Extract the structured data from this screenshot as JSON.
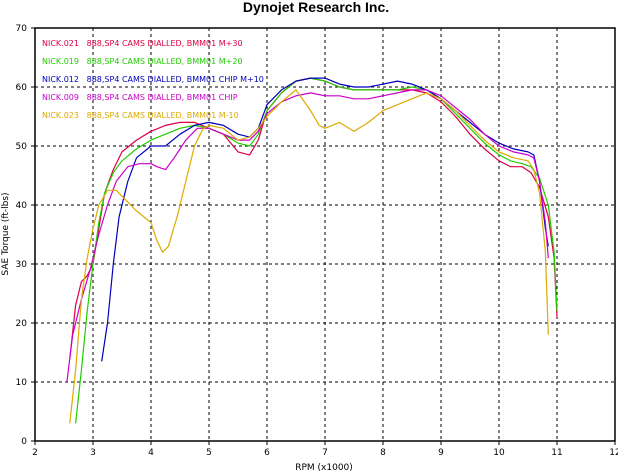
{
  "chart_data": {
    "type": "line",
    "title": "Dynojet  Research  Inc.",
    "xlabel": "RPM (x1000)",
    "ylabel": "SAE Torque (ft-lbs)",
    "xlim": [
      2,
      12
    ],
    "ylim": [
      0,
      70
    ],
    "xticks": [
      2,
      3,
      4,
      5,
      6,
      7,
      8,
      9,
      10,
      11,
      12
    ],
    "yticks": [
      0,
      10,
      20,
      30,
      40,
      50,
      60,
      70
    ],
    "grid": true,
    "legend_position": "top-left",
    "series": [
      {
        "name": "NICK.021   888,SP4 CAMS DIALLED, BMM01 M+30",
        "color": "#dd0044",
        "points": [
          [
            2.6,
            14
          ],
          [
            2.7,
            23
          ],
          [
            2.8,
            27
          ],
          [
            2.9,
            28
          ],
          [
            3.0,
            30
          ],
          [
            3.1,
            36
          ],
          [
            3.2,
            42
          ],
          [
            3.35,
            46
          ],
          [
            3.5,
            49
          ],
          [
            3.75,
            51
          ],
          [
            4.0,
            52.5
          ],
          [
            4.25,
            53.5
          ],
          [
            4.5,
            54
          ],
          [
            4.75,
            54
          ],
          [
            5.0,
            53
          ],
          [
            5.25,
            52
          ],
          [
            5.5,
            49
          ],
          [
            5.7,
            48.5
          ],
          [
            5.85,
            51
          ],
          [
            6.0,
            56
          ],
          [
            6.25,
            59
          ],
          [
            6.5,
            61
          ],
          [
            6.75,
            61.5
          ],
          [
            7.0,
            61
          ],
          [
            7.25,
            60
          ],
          [
            7.5,
            59.5
          ],
          [
            7.75,
            59.5
          ],
          [
            8.0,
            59.5
          ],
          [
            8.25,
            59.5
          ],
          [
            8.5,
            59.5
          ],
          [
            8.75,
            59
          ],
          [
            9.0,
            57.5
          ],
          [
            9.25,
            55
          ],
          [
            9.5,
            52
          ],
          [
            9.75,
            49.5
          ],
          [
            10.0,
            47.5
          ],
          [
            10.2,
            46.5
          ],
          [
            10.4,
            46.5
          ],
          [
            10.55,
            45.5
          ],
          [
            10.7,
            43
          ],
          [
            10.85,
            38
          ],
          [
            10.95,
            31
          ],
          [
            11.0,
            21
          ]
        ]
      },
      {
        "name": "NICK.019   888,SP4 CAMS DIALLED, BMM01 M+20",
        "color": "#22cc00",
        "points": [
          [
            2.7,
            3
          ],
          [
            2.8,
            12
          ],
          [
            2.9,
            22
          ],
          [
            3.0,
            30
          ],
          [
            3.1,
            37
          ],
          [
            3.2,
            42
          ],
          [
            3.35,
            45.5
          ],
          [
            3.5,
            47.5
          ],
          [
            3.75,
            49.5
          ],
          [
            4.0,
            51
          ],
          [
            4.25,
            52
          ],
          [
            4.5,
            53
          ],
          [
            4.75,
            53.5
          ],
          [
            5.0,
            53
          ],
          [
            5.25,
            52
          ],
          [
            5.5,
            50.5
          ],
          [
            5.7,
            50
          ],
          [
            5.85,
            52
          ],
          [
            6.0,
            56
          ],
          [
            6.25,
            59
          ],
          [
            6.5,
            61
          ],
          [
            6.75,
            61.5
          ],
          [
            7.0,
            61
          ],
          [
            7.25,
            60
          ],
          [
            7.5,
            59.5
          ],
          [
            7.75,
            59.5
          ],
          [
            8.0,
            59.5
          ],
          [
            8.25,
            59.5
          ],
          [
            8.5,
            60
          ],
          [
            8.75,
            59.5
          ],
          [
            9.0,
            58
          ],
          [
            9.25,
            55.5
          ],
          [
            9.5,
            53
          ],
          [
            9.75,
            50.5
          ],
          [
            10.0,
            48.5
          ],
          [
            10.2,
            47.5
          ],
          [
            10.4,
            47
          ],
          [
            10.55,
            46.5
          ],
          [
            10.7,
            44.5
          ],
          [
            10.85,
            40
          ],
          [
            10.95,
            32
          ],
          [
            11.0,
            22
          ]
        ]
      },
      {
        "name": "NICK.012   888,SP4 CAMS DIALLED, BMM01 CHIP M+10",
        "color": "#0000bb",
        "points": [
          [
            3.15,
            13.5
          ],
          [
            3.25,
            20
          ],
          [
            3.35,
            30
          ],
          [
            3.45,
            38
          ],
          [
            3.6,
            44
          ],
          [
            3.75,
            48
          ],
          [
            4.0,
            50
          ],
          [
            4.25,
            50
          ],
          [
            4.5,
            52
          ],
          [
            4.75,
            53.5
          ],
          [
            5.0,
            54
          ],
          [
            5.25,
            53.5
          ],
          [
            5.5,
            52
          ],
          [
            5.7,
            51.5
          ],
          [
            5.85,
            53
          ],
          [
            6.0,
            57
          ],
          [
            6.25,
            59.5
          ],
          [
            6.5,
            61
          ],
          [
            6.75,
            61.5
          ],
          [
            7.0,
            61.5
          ],
          [
            7.25,
            60.5
          ],
          [
            7.5,
            60
          ],
          [
            7.75,
            60
          ],
          [
            8.0,
            60.5
          ],
          [
            8.25,
            61
          ],
          [
            8.5,
            60.5
          ],
          [
            8.75,
            59.5
          ],
          [
            9.0,
            58
          ],
          [
            9.25,
            56
          ],
          [
            9.5,
            54
          ],
          [
            9.75,
            52
          ],
          [
            10.0,
            50.5
          ],
          [
            10.25,
            49.5
          ],
          [
            10.5,
            49
          ],
          [
            10.6,
            48.5
          ],
          [
            10.7,
            44
          ],
          [
            10.8,
            36
          ],
          [
            10.85,
            33
          ]
        ]
      },
      {
        "name": "NICK.009   888,SP4 CAMS DIALLED, BMM01 CHIP",
        "color": "#cc00cc",
        "points": [
          [
            2.55,
            10
          ],
          [
            2.65,
            18
          ],
          [
            2.8,
            24
          ],
          [
            2.95,
            29
          ],
          [
            3.1,
            35
          ],
          [
            3.25,
            40
          ],
          [
            3.4,
            44
          ],
          [
            3.6,
            46.5
          ],
          [
            3.8,
            47
          ],
          [
            4.0,
            47
          ],
          [
            4.1,
            46.5
          ],
          [
            4.25,
            46
          ],
          [
            4.4,
            48
          ],
          [
            4.6,
            51
          ],
          [
            4.8,
            53
          ],
          [
            5.0,
            53
          ],
          [
            5.25,
            52
          ],
          [
            5.5,
            51
          ],
          [
            5.7,
            51
          ],
          [
            5.85,
            52.5
          ],
          [
            6.0,
            55.5
          ],
          [
            6.25,
            57.5
          ],
          [
            6.5,
            58.5
          ],
          [
            6.75,
            59
          ],
          [
            7.0,
            58.5
          ],
          [
            7.25,
            58.5
          ],
          [
            7.5,
            58
          ],
          [
            7.75,
            58
          ],
          [
            8.0,
            58.5
          ],
          [
            8.25,
            59
          ],
          [
            8.5,
            59.5
          ],
          [
            8.75,
            59.5
          ],
          [
            9.0,
            58.5
          ],
          [
            9.25,
            56.5
          ],
          [
            9.5,
            54.5
          ],
          [
            9.75,
            52
          ],
          [
            10.0,
            50
          ],
          [
            10.25,
            49
          ],
          [
            10.5,
            48.5
          ],
          [
            10.6,
            48
          ],
          [
            10.7,
            44
          ],
          [
            10.8,
            37
          ],
          [
            10.85,
            31
          ]
        ]
      },
      {
        "name": "NICK.023   888,SP4 CAMS DIALLED, BMM01 M-10",
        "color": "#ddaa00",
        "points": [
          [
            2.6,
            3
          ],
          [
            2.7,
            12
          ],
          [
            2.8,
            24
          ],
          [
            2.9,
            31
          ],
          [
            3.0,
            36
          ],
          [
            3.1,
            40
          ],
          [
            3.25,
            42.5
          ],
          [
            3.4,
            42.5
          ],
          [
            3.55,
            41
          ],
          [
            3.75,
            39
          ],
          [
            4.0,
            37
          ],
          [
            4.1,
            34
          ],
          [
            4.2,
            32
          ],
          [
            4.3,
            33
          ],
          [
            4.45,
            38
          ],
          [
            4.6,
            44
          ],
          [
            4.75,
            50
          ],
          [
            4.9,
            53
          ],
          [
            5.0,
            53.5
          ],
          [
            5.25,
            53
          ],
          [
            5.5,
            51
          ],
          [
            5.7,
            51.5
          ],
          [
            5.85,
            53
          ],
          [
            6.0,
            55
          ],
          [
            6.25,
            57.5
          ],
          [
            6.5,
            59.5
          ],
          [
            6.75,
            56
          ],
          [
            6.9,
            53.5
          ],
          [
            7.0,
            53
          ],
          [
            7.25,
            54
          ],
          [
            7.5,
            52.5
          ],
          [
            7.75,
            54
          ],
          [
            8.0,
            56
          ],
          [
            8.25,
            57
          ],
          [
            8.5,
            58
          ],
          [
            8.75,
            59
          ],
          [
            9.0,
            58
          ],
          [
            9.25,
            56
          ],
          [
            9.5,
            53.5
          ],
          [
            9.75,
            51
          ],
          [
            10.0,
            49
          ],
          [
            10.25,
            48
          ],
          [
            10.5,
            47.5
          ],
          [
            10.6,
            46
          ],
          [
            10.7,
            42
          ],
          [
            10.8,
            32
          ],
          [
            10.85,
            18
          ]
        ]
      }
    ]
  }
}
